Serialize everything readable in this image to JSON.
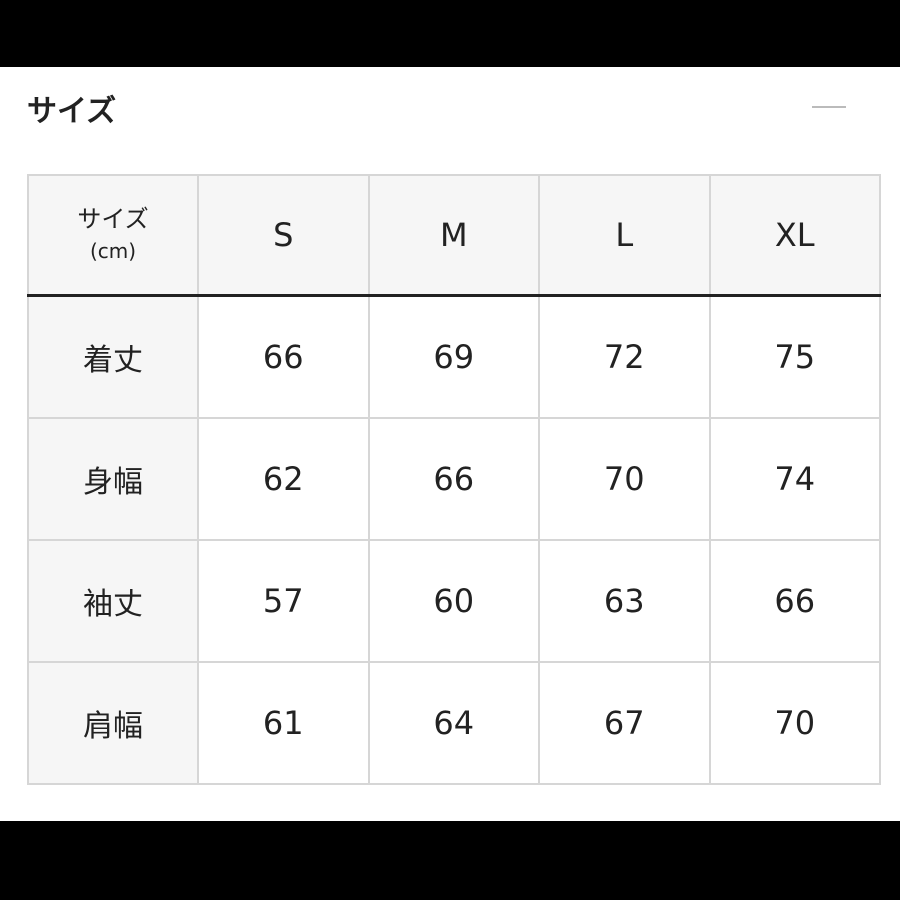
{
  "section": {
    "title": "サイズ",
    "collapse_icon": "minus-icon"
  },
  "table": {
    "corner_label": "サイズ",
    "corner_unit": "(cm)",
    "columns": [
      "S",
      "M",
      "L",
      "XL"
    ],
    "rows": [
      {
        "label": "着丈",
        "values": [
          "66",
          "69",
          "72",
          "75"
        ]
      },
      {
        "label": "身幅",
        "values": [
          "62",
          "66",
          "70",
          "74"
        ]
      },
      {
        "label": "袖丈",
        "values": [
          "57",
          "60",
          "63",
          "66"
        ]
      },
      {
        "label": "肩幅",
        "values": [
          "61",
          "64",
          "67",
          "70"
        ]
      }
    ]
  }
}
